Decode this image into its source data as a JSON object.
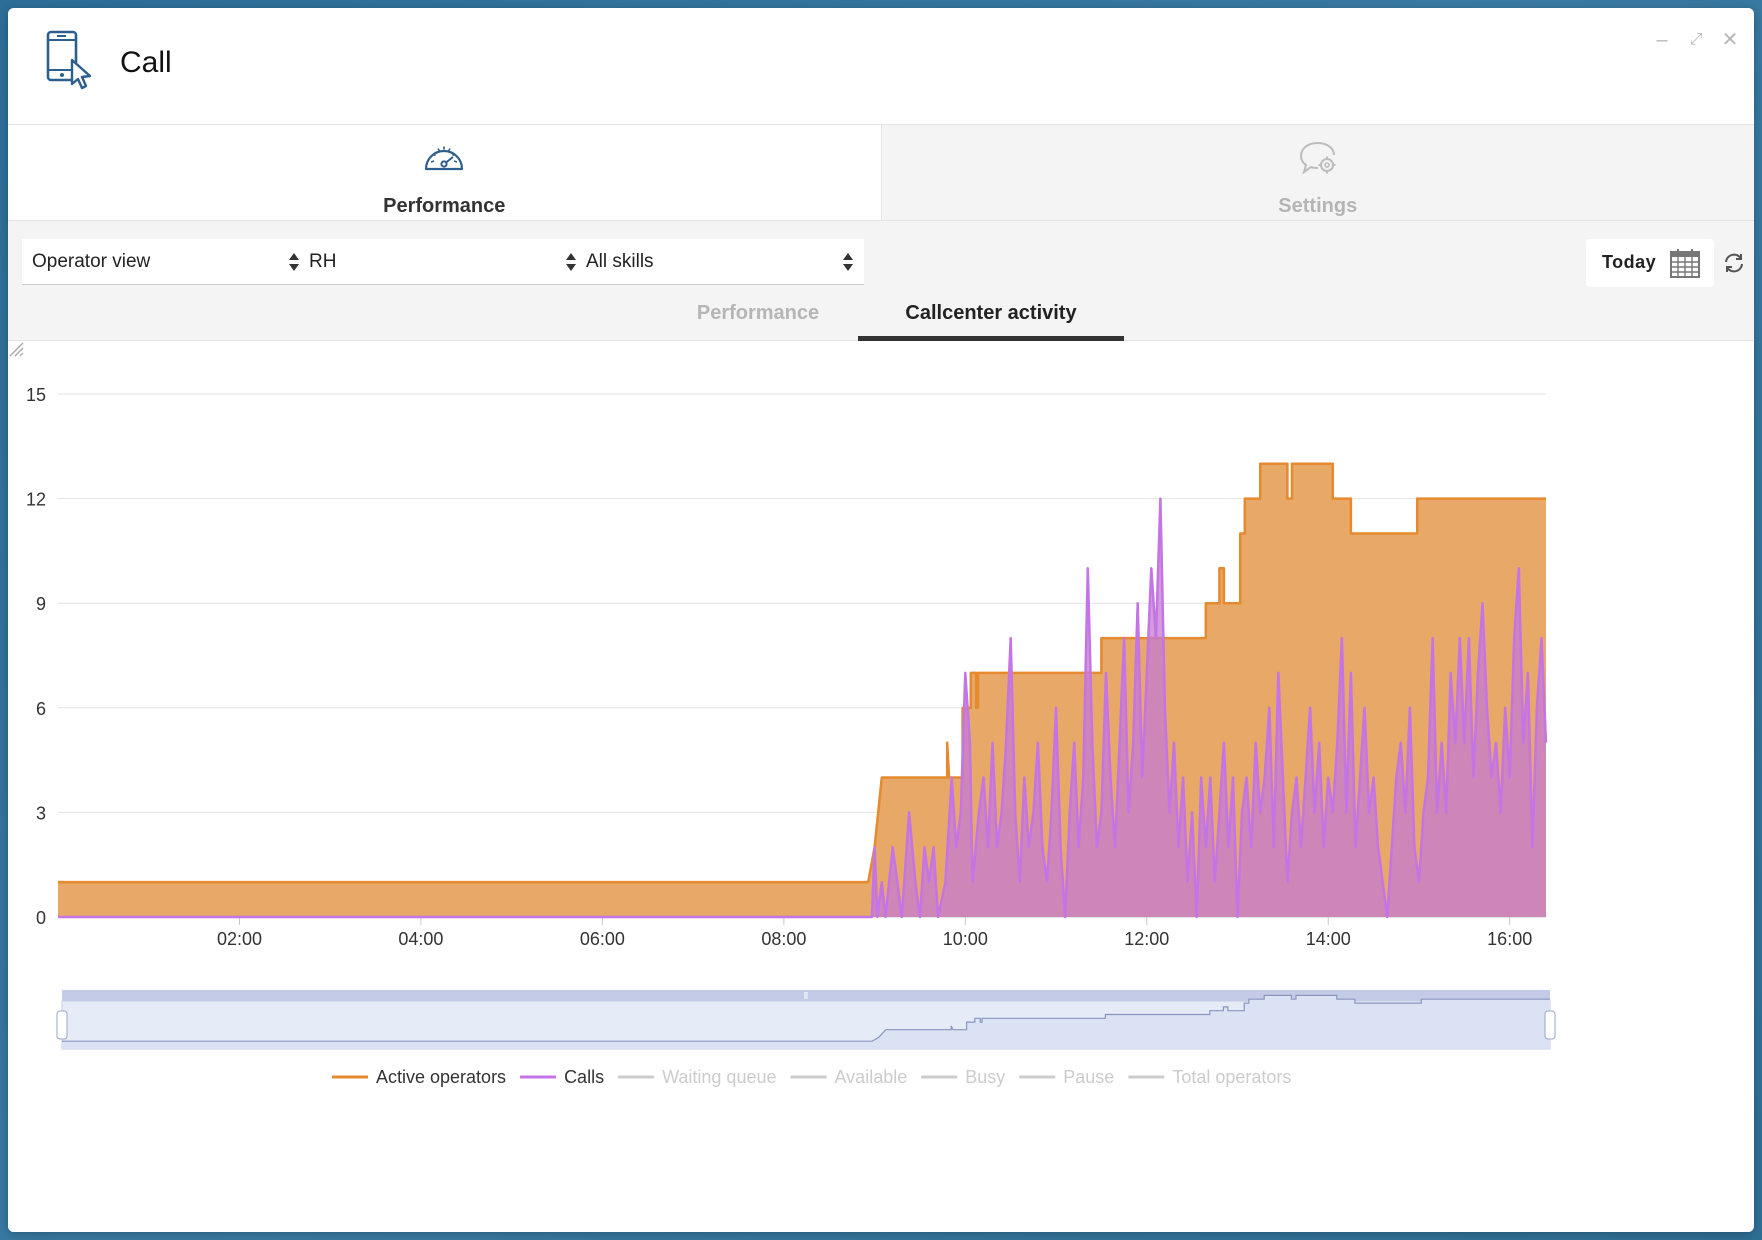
{
  "window": {
    "title": "Call",
    "icon": "phone-cursor-icon",
    "controls": [
      "minimize-icon",
      "maximize-icon",
      "close-icon"
    ]
  },
  "main_tabs": [
    {
      "label": "Performance",
      "icon": "speedometer-icon",
      "active": true
    },
    {
      "label": "Settings",
      "icon": "chat-gear-icon",
      "active": false
    }
  ],
  "toolbar": {
    "view_select": "Operator view",
    "group_select": "RH",
    "skills_select": "All skills",
    "date_button": "Today",
    "date_icon": "calendar-icon",
    "refresh_icon": "refresh-icon"
  },
  "sub_tabs": [
    {
      "label": "Performance",
      "active": false
    },
    {
      "label": "Callcenter activity",
      "active": true
    }
  ],
  "colors": {
    "active_operators": "#e58a2e",
    "active_operators_fill": "#e8a867",
    "calls": "#c574e6",
    "calls_fill": "#c67ad2",
    "inactive_legend": "#cccccc",
    "navigator_fill": "#e6ebf8",
    "navigator_bar": "#c4cbe6"
  },
  "chart_data": {
    "type": "area",
    "x_unit": "hours",
    "xlim": [
      0.0,
      16.4
    ],
    "ylim": [
      0,
      15
    ],
    "ytick_labels": [
      "0",
      "3",
      "6",
      "9",
      "12",
      "15"
    ],
    "xtick_labels": [
      "02:00",
      "04:00",
      "06:00",
      "08:00",
      "10:00",
      "12:00",
      "14:00",
      "16:00"
    ],
    "grid": true,
    "legend_position": "bottom",
    "series": [
      {
        "name": "Active operators",
        "visible": true,
        "step": true,
        "points": [
          [
            0.0,
            1
          ],
          [
            8.93,
            1
          ],
          [
            9.0,
            2
          ],
          [
            9.08,
            4
          ],
          [
            9.8,
            4
          ],
          [
            9.8,
            5
          ],
          [
            9.82,
            4
          ],
          [
            9.97,
            4
          ],
          [
            9.97,
            6
          ],
          [
            10.06,
            6
          ],
          [
            10.06,
            7
          ],
          [
            10.12,
            7
          ],
          [
            10.12,
            6
          ],
          [
            10.14,
            6
          ],
          [
            10.14,
            7
          ],
          [
            11.5,
            7
          ],
          [
            11.5,
            8
          ],
          [
            12.65,
            8
          ],
          [
            12.65,
            9
          ],
          [
            12.8,
            9
          ],
          [
            12.8,
            10
          ],
          [
            12.85,
            10
          ],
          [
            12.85,
            9
          ],
          [
            13.03,
            9
          ],
          [
            13.03,
            11
          ],
          [
            13.08,
            11
          ],
          [
            13.08,
            12
          ],
          [
            13.25,
            12
          ],
          [
            13.25,
            13
          ],
          [
            13.55,
            13
          ],
          [
            13.55,
            12
          ],
          [
            13.6,
            12
          ],
          [
            13.6,
            13
          ],
          [
            14.05,
            13
          ],
          [
            14.05,
            12
          ],
          [
            14.25,
            12
          ],
          [
            14.25,
            11
          ],
          [
            14.98,
            11
          ],
          [
            14.98,
            12
          ],
          [
            16.4,
            12
          ]
        ]
      },
      {
        "name": "Calls",
        "visible": true,
        "step": false,
        "points": [
          [
            0.0,
            0
          ],
          [
            8.97,
            0
          ],
          [
            9.0,
            2
          ],
          [
            9.03,
            0
          ],
          [
            9.08,
            1
          ],
          [
            9.12,
            0
          ],
          [
            9.2,
            2
          ],
          [
            9.25,
            1
          ],
          [
            9.3,
            0
          ],
          [
            9.38,
            3
          ],
          [
            9.45,
            1
          ],
          [
            9.5,
            0
          ],
          [
            9.55,
            2
          ],
          [
            9.6,
            1
          ],
          [
            9.65,
            2
          ],
          [
            9.7,
            0
          ],
          [
            9.78,
            1
          ],
          [
            9.85,
            4
          ],
          [
            9.9,
            2
          ],
          [
            9.95,
            3
          ],
          [
            10.0,
            7
          ],
          [
            10.05,
            5
          ],
          [
            10.08,
            1
          ],
          [
            10.15,
            3
          ],
          [
            10.2,
            4
          ],
          [
            10.25,
            2
          ],
          [
            10.3,
            5
          ],
          [
            10.35,
            2
          ],
          [
            10.4,
            3
          ],
          [
            10.45,
            5
          ],
          [
            10.5,
            8
          ],
          [
            10.55,
            3
          ],
          [
            10.6,
            1
          ],
          [
            10.65,
            4
          ],
          [
            10.7,
            2
          ],
          [
            10.75,
            3
          ],
          [
            10.8,
            5
          ],
          [
            10.85,
            2
          ],
          [
            10.9,
            1
          ],
          [
            10.95,
            3
          ],
          [
            11.0,
            6
          ],
          [
            11.05,
            2
          ],
          [
            11.1,
            0
          ],
          [
            11.15,
            3
          ],
          [
            11.2,
            5
          ],
          [
            11.25,
            2
          ],
          [
            11.3,
            4
          ],
          [
            11.35,
            10
          ],
          [
            11.4,
            5
          ],
          [
            11.45,
            2
          ],
          [
            11.5,
            3
          ],
          [
            11.55,
            7
          ],
          [
            11.6,
            4
          ],
          [
            11.65,
            2
          ],
          [
            11.7,
            5
          ],
          [
            11.75,
            8
          ],
          [
            11.8,
            3
          ],
          [
            11.85,
            5
          ],
          [
            11.9,
            9
          ],
          [
            11.95,
            4
          ],
          [
            12.0,
            7
          ],
          [
            12.05,
            10
          ],
          [
            12.1,
            8
          ],
          [
            12.15,
            12
          ],
          [
            12.2,
            6
          ],
          [
            12.25,
            3
          ],
          [
            12.3,
            5
          ],
          [
            12.35,
            2
          ],
          [
            12.4,
            4
          ],
          [
            12.45,
            1
          ],
          [
            12.5,
            3
          ],
          [
            12.55,
            0
          ],
          [
            12.6,
            4
          ],
          [
            12.65,
            2
          ],
          [
            12.7,
            4
          ],
          [
            12.75,
            1
          ],
          [
            12.8,
            3
          ],
          [
            12.85,
            5
          ],
          [
            12.9,
            2
          ],
          [
            12.95,
            4
          ],
          [
            13.0,
            0
          ],
          [
            13.05,
            3
          ],
          [
            13.1,
            4
          ],
          [
            13.15,
            2
          ],
          [
            13.2,
            5
          ],
          [
            13.25,
            3
          ],
          [
            13.3,
            4
          ],
          [
            13.35,
            6
          ],
          [
            13.4,
            2
          ],
          [
            13.45,
            7
          ],
          [
            13.5,
            4
          ],
          [
            13.55,
            1
          ],
          [
            13.6,
            3
          ],
          [
            13.65,
            4
          ],
          [
            13.7,
            2
          ],
          [
            13.75,
            4
          ],
          [
            13.8,
            6
          ],
          [
            13.85,
            3
          ],
          [
            13.9,
            5
          ],
          [
            13.95,
            2
          ],
          [
            14.0,
            4
          ],
          [
            14.05,
            3
          ],
          [
            14.1,
            5
          ],
          [
            14.15,
            8
          ],
          [
            14.2,
            3
          ],
          [
            14.25,
            7
          ],
          [
            14.3,
            2
          ],
          [
            14.35,
            4
          ],
          [
            14.4,
            6
          ],
          [
            14.45,
            3
          ],
          [
            14.5,
            4
          ],
          [
            14.55,
            2
          ],
          [
            14.6,
            1
          ],
          [
            14.65,
            0
          ],
          [
            14.7,
            2
          ],
          [
            14.75,
            4
          ],
          [
            14.8,
            5
          ],
          [
            14.85,
            3
          ],
          [
            14.9,
            6
          ],
          [
            14.95,
            2
          ],
          [
            15.0,
            1
          ],
          [
            15.05,
            3
          ],
          [
            15.1,
            4
          ],
          [
            15.15,
            8
          ],
          [
            15.2,
            3
          ],
          [
            15.25,
            5
          ],
          [
            15.3,
            3
          ],
          [
            15.35,
            7
          ],
          [
            15.4,
            5
          ],
          [
            15.45,
            8
          ],
          [
            15.5,
            5
          ],
          [
            15.55,
            8
          ],
          [
            15.6,
            4
          ],
          [
            15.65,
            7
          ],
          [
            15.7,
            9
          ],
          [
            15.75,
            6
          ],
          [
            15.8,
            4
          ],
          [
            15.85,
            5
          ],
          [
            15.9,
            3
          ],
          [
            15.95,
            6
          ],
          [
            16.0,
            4
          ],
          [
            16.05,
            8
          ],
          [
            16.1,
            10
          ],
          [
            16.15,
            5
          ],
          [
            16.2,
            7
          ],
          [
            16.25,
            2
          ],
          [
            16.3,
            6
          ],
          [
            16.35,
            8
          ],
          [
            16.4,
            5
          ]
        ]
      },
      {
        "name": "Waiting queue",
        "visible": false
      },
      {
        "name": "Available",
        "visible": false
      },
      {
        "name": "Busy",
        "visible": false
      },
      {
        "name": "Pause",
        "visible": false
      },
      {
        "name": "Total operators",
        "visible": false
      }
    ],
    "navigator": {
      "grip_icon": "grip-lines-icon"
    }
  }
}
